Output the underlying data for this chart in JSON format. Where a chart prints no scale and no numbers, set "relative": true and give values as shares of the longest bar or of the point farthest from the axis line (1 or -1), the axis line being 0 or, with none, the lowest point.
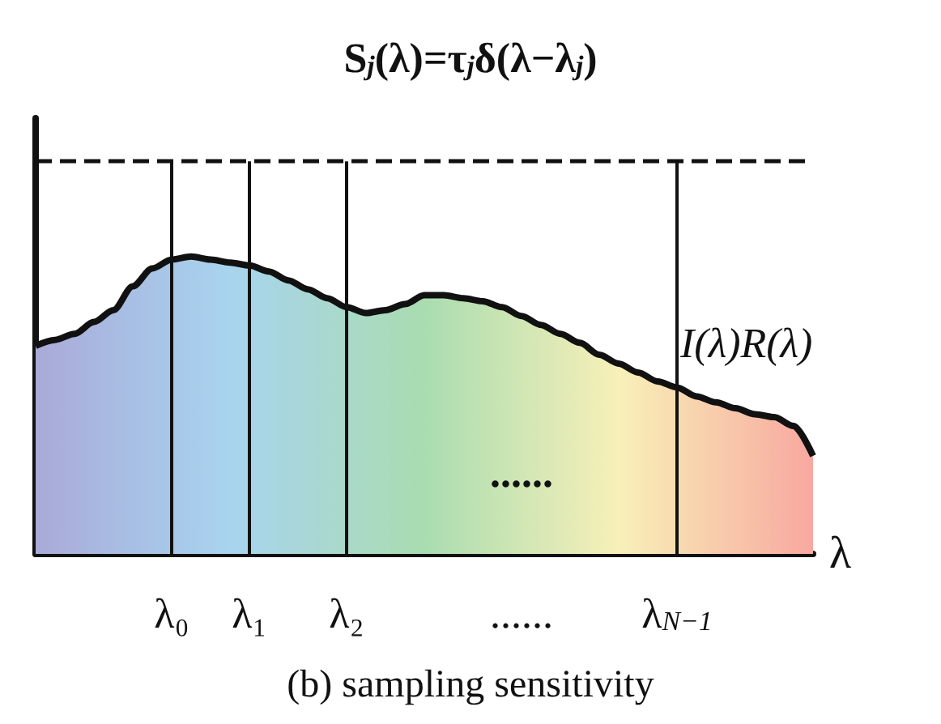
{
  "chart_data": {
    "type": "area",
    "relative": true,
    "title": "S$_{j}$(λ)=τ$_{j}$δ(λ−λ$_{j}$)",
    "xlabel": "λ",
    "categories": [
      null,
      null,
      null,
      null,
      null,
      null,
      null,
      "λ₀",
      null,
      null,
      null,
      "λ₁",
      null,
      null,
      null,
      null,
      "λ₂",
      null,
      null,
      null,
      null,
      null,
      null,
      null,
      null,
      "......",
      null,
      null,
      null,
      null,
      null,
      null,
      null,
      "λ$_{N−1}$",
      null,
      null,
      null,
      null,
      null,
      null,
      null
    ],
    "series": [
      {
        "name": "I(λ)R(λ)",
        "color": "#111111",
        "colors": [
          "#a9aad8",
          "#a9aeda",
          "#a9b2dd",
          "#a9b7df",
          "#a9bbe1",
          "#a8bfe4",
          "#a8c3e6",
          "#a8c7e8",
          "#a8cceb",
          "#a8d0ed",
          "#a8d4ef",
          "#a8d5e9",
          "#a8d6e3",
          "#a8d6dc",
          "#a8d7d6",
          "#a9d8d0",
          "#a9d9ca",
          "#a9dac3",
          "#a9dbbd",
          "#a9dbb6",
          "#a9dcb0",
          "#b1deb1",
          "#b9e0b2",
          "#c1e2b3",
          "#c9e4b3",
          "#d1e6b4",
          "#d8e8b5",
          "#e0eab6",
          "#e8ecb6",
          "#f0eeb7",
          "#f8f0b8",
          "#f8e9b6",
          "#f8e2b3",
          "#f8dbb1",
          "#f8d3ae",
          "#f8ccac",
          "#f8c5aa",
          "#f8bea7",
          "#f8b6a5",
          "#f8afa2",
          "#f8a8a0"
        ],
        "values": [
          0.7,
          0.72,
          0.74,
          0.78,
          0.82,
          0.9,
          0.96,
          0.99,
          1.0,
          0.99,
          0.98,
          0.97,
          0.95,
          0.92,
          0.89,
          0.86,
          0.83,
          0.81,
          0.82,
          0.84,
          0.87,
          0.87,
          0.86,
          0.85,
          0.83,
          0.8,
          0.77,
          0.74,
          0.71,
          0.67,
          0.64,
          0.61,
          0.58,
          0.56,
          0.53,
          0.51,
          0.49,
          0.47,
          0.46,
          0.43,
          0.33
        ]
      }
    ],
    "ref_lines": [
      {
        "axis": "y",
        "value": 1.32,
        "line_style": "dashed"
      },
      {
        "axis": "x",
        "value": "λ₀"
      },
      {
        "axis": "x",
        "value": "λ₁"
      },
      {
        "axis": "x",
        "value": "λ₂"
      },
      {
        "axis": "x",
        "value": "λ$_{N−1}$"
      }
    ],
    "annotations": [
      "......",
      "(b) sampling sensitivity"
    ],
    "legend": false,
    "grid": false
  }
}
